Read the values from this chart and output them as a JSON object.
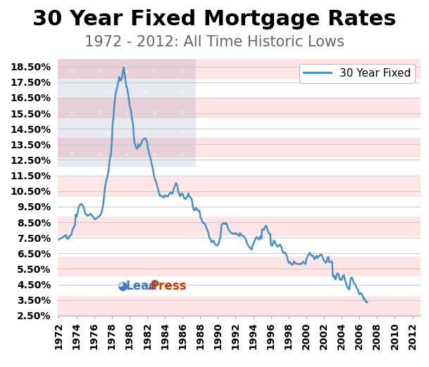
{
  "title": "30 Year Fixed Mortgage Rates",
  "subtitle": "1972 - 2012: All Time Historic Lows",
  "line_color": "#4a8fc0",
  "line_label": "30 Year Fixed",
  "background_color": "#ffffff",
  "ylim": [
    2.5,
    19.0
  ],
  "ytick_labels": [
    "2.50%",
    "3.50%",
    "4.50%",
    "5.50%",
    "6.50%",
    "7.50%",
    "8.50%",
    "9.50%",
    "10.50%",
    "11.50%",
    "12.50%",
    "13.50%",
    "14.50%",
    "15.50%",
    "16.50%",
    "17.50%",
    "18.50%"
  ],
  "ytick_values": [
    2.5,
    3.5,
    4.5,
    5.5,
    6.5,
    7.5,
    8.5,
    9.5,
    10.5,
    11.5,
    12.5,
    13.5,
    14.5,
    15.5,
    16.5,
    17.5,
    18.5
  ],
  "xtick_labels": [
    "1972",
    "1974",
    "1976",
    "1978",
    "1980",
    "1982",
    "1984",
    "1986",
    "1988",
    "1990",
    "1992",
    "1994",
    "1996",
    "1998",
    "2000",
    "2002",
    "2004",
    "2006",
    "2008",
    "2010",
    "2012"
  ],
  "xtick_values": [
    1972,
    1974,
    1976,
    1978,
    1980,
    1982,
    1984,
    1986,
    1988,
    1990,
    1992,
    1994,
    1996,
    1998,
    2000,
    2002,
    2004,
    2006,
    2008,
    2010,
    2012
  ],
  "monthly_data": [
    7.38,
    7.43,
    7.44,
    7.47,
    7.5,
    7.52,
    7.54,
    7.59,
    7.61,
    7.65,
    7.68,
    7.44,
    7.44,
    7.46,
    7.54,
    7.61,
    7.65,
    7.69,
    7.92,
    8.05,
    8.18,
    8.23,
    8.32,
    8.99,
    8.85,
    8.98,
    9.21,
    9.45,
    9.59,
    9.62,
    9.64,
    9.68,
    9.59,
    9.54,
    9.42,
    9.21,
    9.05,
    9.0,
    8.98,
    8.91,
    8.94,
    8.95,
    9.0,
    9.05,
    9.0,
    8.91,
    8.87,
    8.83,
    8.72,
    8.69,
    8.71,
    8.74,
    8.79,
    8.82,
    8.85,
    8.89,
    8.93,
    9.0,
    9.17,
    9.31,
    9.56,
    9.94,
    10.42,
    10.83,
    11.09,
    11.27,
    11.46,
    11.66,
    11.98,
    12.5,
    12.73,
    12.9,
    13.74,
    14.77,
    15.14,
    15.8,
    16.32,
    16.7,
    16.97,
    17.08,
    17.31,
    17.55,
    17.84,
    17.66,
    17.6,
    17.66,
    17.83,
    18.13,
    18.45,
    18.17,
    17.78,
    17.4,
    17.22,
    17.02,
    16.78,
    16.48,
    16.04,
    15.85,
    15.65,
    15.29,
    14.98,
    14.68,
    13.87,
    13.57,
    13.44,
    13.29,
    13.21,
    13.24,
    13.52,
    13.44,
    13.37,
    13.46,
    13.57,
    13.72,
    13.79,
    13.84,
    13.85,
    13.88,
    13.88,
    13.75,
    13.6,
    13.22,
    13.06,
    12.85,
    12.7,
    12.49,
    12.27,
    12.05,
    11.83,
    11.55,
    11.34,
    11.21,
    11.09,
    10.94,
    10.76,
    10.56,
    10.39,
    10.2,
    10.19,
    10.21,
    10.18,
    10.13,
    10.08,
    10.11,
    10.24,
    10.19,
    10.18,
    10.16,
    10.15,
    10.23,
    10.33,
    10.39,
    10.41,
    10.34,
    10.34,
    10.42,
    10.67,
    10.74,
    10.87,
    11.02,
    10.97,
    10.82,
    10.52,
    10.37,
    10.21,
    10.18,
    10.32,
    10.35,
    10.32,
    10.21,
    10.05,
    10.01,
    9.98,
    10.02,
    10.13,
    10.19,
    10.36,
    10.16,
    10.12,
    10.08,
    9.98,
    9.83,
    9.52,
    9.32,
    9.26,
    9.3,
    9.43,
    9.39,
    9.29,
    9.24,
    9.22,
    9.25,
    8.88,
    8.74,
    8.64,
    8.52,
    8.44,
    8.46,
    8.39,
    8.33,
    8.19,
    8.08,
    7.95,
    7.84,
    7.57,
    7.46,
    7.4,
    7.22,
    7.22,
    7.3,
    7.31,
    7.2,
    7.09,
    7.05,
    7.03,
    6.99,
    7.05,
    7.15,
    7.3,
    7.49,
    7.86,
    8.35,
    8.38,
    8.43,
    8.47,
    8.4,
    8.38,
    8.45,
    8.36,
    8.22,
    8.05,
    7.97,
    7.93,
    7.87,
    7.81,
    7.8,
    7.74,
    7.76,
    7.77,
    7.74,
    7.81,
    7.75,
    7.76,
    7.71,
    7.63,
    7.62,
    7.81,
    7.73,
    7.65,
    7.62,
    7.61,
    7.6,
    7.52,
    7.44,
    7.38,
    7.22,
    7.12,
    7.02,
    6.94,
    6.89,
    6.84,
    6.76,
    6.74,
    6.99,
    7.09,
    7.21,
    7.35,
    7.44,
    7.53,
    7.55,
    7.46,
    7.4,
    7.4,
    7.54,
    7.61,
    7.44,
    8.05,
    8.02,
    8.0,
    8.07,
    8.19,
    8.28,
    8.22,
    8.05,
    7.91,
    7.8,
    7.74,
    7.76,
    7.03,
    7.01,
    7.01,
    7.2,
    7.33,
    7.28,
    7.14,
    7.06,
    7.0,
    6.92,
    6.97,
    7.01,
    7.07,
    7.03,
    6.91,
    6.76,
    6.6,
    6.52,
    6.54,
    6.56,
    6.49,
    6.38,
    6.24,
    6.07,
    5.89,
    5.9,
    5.94,
    5.83,
    5.81,
    5.76,
    5.83,
    5.98,
    5.95,
    5.85,
    5.85,
    5.83,
    5.83,
    5.81,
    5.79,
    5.84,
    5.84,
    5.8,
    5.87,
    5.93,
    5.97,
    5.88,
    5.87,
    5.81,
    6.13,
    6.22,
    6.33,
    6.43,
    6.51,
    6.53,
    6.41,
    6.34,
    6.36,
    6.36,
    6.24,
    6.12,
    6.22,
    6.29,
    6.34,
    6.18,
    6.26,
    6.32,
    6.34,
    6.43,
    6.42,
    6.4,
    6.23,
    6.15,
    6.03,
    5.97,
    5.89,
    5.92,
    6.08,
    6.26,
    6.26,
    5.94,
    5.94,
    5.94,
    5.99,
    5.96,
    5.04,
    5.01,
    5.06,
    4.83,
    4.86,
    5.06,
    5.22,
    5.19,
    5.09,
    4.95,
    4.78,
    4.81,
    4.81,
    4.97,
    5.08,
    5.1,
    4.86,
    4.72,
    4.57,
    4.44,
    4.3,
    4.23,
    4.17,
    4.42,
    4.81,
    4.95,
    4.93,
    4.84,
    4.64,
    4.57,
    4.55,
    4.43,
    4.32,
    4.23,
    4.17,
    3.96,
    3.87,
    3.89,
    3.95,
    3.9,
    3.8,
    3.67,
    3.55,
    3.59,
    3.47,
    3.37,
    3.38,
    3.35
  ],
  "grid_color": "#cccccc",
  "title_fontsize": 22,
  "subtitle_fontsize": 15,
  "tick_fontsize": 10,
  "legend_fontsize": 11,
  "line_width": 1.8,
  "xlim": [
    1971.9,
    2012.9
  ]
}
